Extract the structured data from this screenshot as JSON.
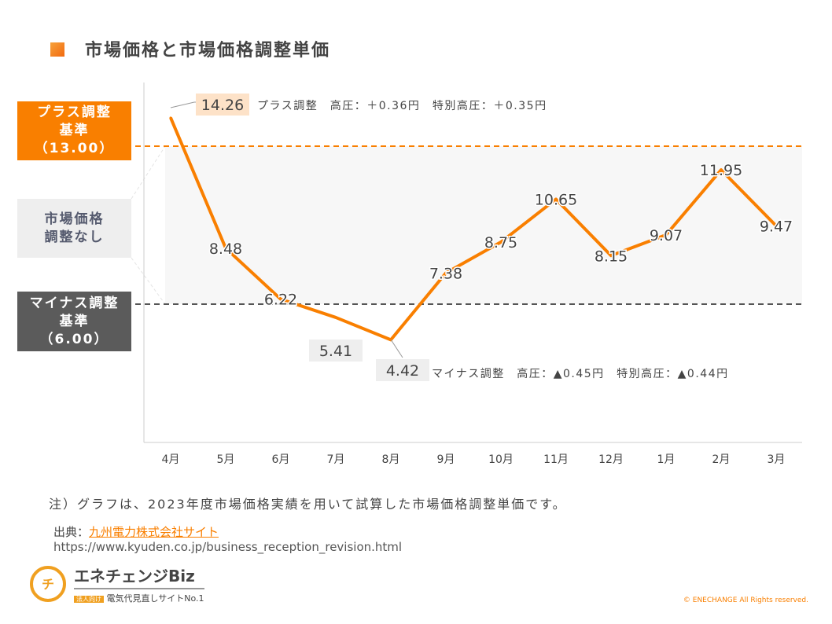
{
  "title": "市場価格と市場価格調整単価",
  "side": {
    "plus": [
      "プラス調整",
      "基準",
      "（13.00）"
    ],
    "none": [
      "市場価格",
      "調整なし"
    ],
    "minus": [
      "マイナス調整",
      "基準",
      "（6.00）"
    ]
  },
  "chart_data": {
    "type": "line",
    "title": "市場価格と市場価格調整単価",
    "categories": [
      "4月",
      "5月",
      "6月",
      "7月",
      "8月",
      "9月",
      "10月",
      "11月",
      "12月",
      "1月",
      "2月",
      "3月"
    ],
    "values": [
      14.26,
      8.48,
      6.22,
      5.41,
      4.42,
      7.38,
      8.75,
      10.65,
      8.15,
      9.07,
      11.95,
      9.47
    ],
    "labels": [
      "14.26",
      "8.48",
      "6.22",
      "5.41",
      "4.42",
      "7.38",
      "8.75",
      "10.65",
      "8.15",
      "9.07",
      "11.95",
      "9.47"
    ],
    "reference_lines": [
      {
        "value": 13.0,
        "color": "#f97f00"
      },
      {
        "value": 6.0,
        "color": "#555555"
      }
    ],
    "band": [
      6.0,
      13.0
    ],
    "annotations": {
      "max": "プラス調整　高圧：＋0.36円　特別高圧：＋0.35円",
      "min": "マイナス調整　高圧：▲0.45円　特別高圧：▲0.44円"
    },
    "line_color": "#f97f00"
  },
  "note": "注）グラフは、2023年度市場価格実績を用いて試算した市場価格調整単価です。",
  "source_label": "出典：",
  "source_link": "九州電力株式会社サイト",
  "url": "https://www.kyuden.co.jp/business_reception_revision.html",
  "logo": {
    "name": "エネチェンジBiz",
    "badge": "法人向け",
    "tagline": "電気代見直しサイトNo.1"
  },
  "copyright": "© ENECHANGE All Rights reserved."
}
